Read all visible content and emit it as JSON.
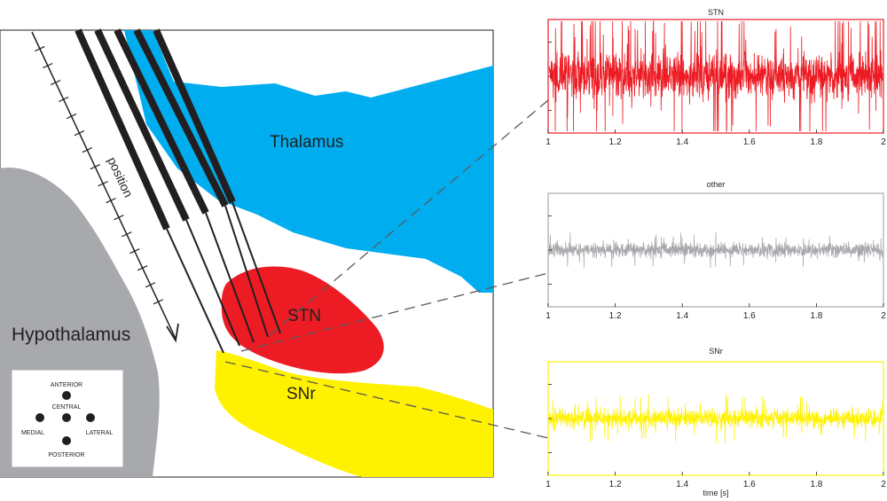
{
  "anatomy": {
    "thalamus": "Thalamus",
    "stn": "STN",
    "snr": "SNr",
    "hypothalamus": "Hypothalamus",
    "position_axis": "position"
  },
  "orientation_key": {
    "anterior": "ANTERIOR",
    "central": "CENTRAL",
    "medial": "MEDIAL",
    "lateral": "LATERAL",
    "posterior": "POSTERIOR"
  },
  "colors": {
    "thalamus": "#00aeef",
    "stn": "#ed1c24",
    "snr": "#fff200",
    "hypothalamus": "#a7a9ac",
    "other_trace": "#a7a9ac"
  },
  "chart_data": [
    {
      "type": "line",
      "title": "STN",
      "series_color": "#ed1c24",
      "xlim": [
        1,
        2
      ],
      "ticks": [
        "1",
        "1.2",
        "1.4",
        "1.6",
        "1.8",
        "2"
      ],
      "xlabel": "",
      "signal_amplitude": "high"
    },
    {
      "type": "line",
      "title": "other",
      "series_color": "#a7a9ac",
      "xlim": [
        1,
        2
      ],
      "ticks": [
        "1",
        "1.2",
        "1.4",
        "1.6",
        "1.8",
        "2"
      ],
      "xlabel": "",
      "signal_amplitude": "low"
    },
    {
      "type": "line",
      "title": "SNr",
      "series_color": "#fff200",
      "xlim": [
        1,
        2
      ],
      "ticks": [
        "1",
        "1.2",
        "1.4",
        "1.6",
        "1.8",
        "2"
      ],
      "xlabel": "time [s]",
      "signal_amplitude": "medium"
    }
  ]
}
